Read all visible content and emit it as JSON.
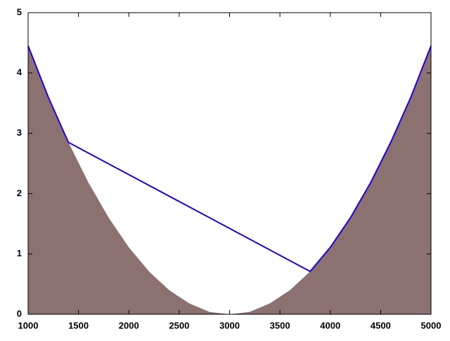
{
  "chart_data": {
    "type": "area",
    "xlim": [
      1000,
      5000
    ],
    "xticks": [
      1000,
      1500,
      2000,
      2500,
      3000,
      3500,
      4000,
      4500,
      5000
    ],
    "ylim": [
      0,
      5
    ],
    "yticks": [
      0,
      1,
      2,
      3,
      4,
      5
    ],
    "grid": false,
    "series": [
      {
        "color": "#8b716f",
        "fill": true,
        "x": [
          1000,
          1200,
          1400,
          1600,
          1800,
          2000,
          2200,
          2400,
          2600,
          2800,
          3000,
          3200,
          3400,
          3600,
          3800,
          4000,
          4200,
          4400,
          4600,
          4800,
          5000
        ],
        "values": [
          4.45,
          3.6,
          2.85,
          2.18,
          1.6,
          1.11,
          0.71,
          0.4,
          0.18,
          0.04,
          0,
          0.04,
          0.18,
          0.4,
          0.71,
          1.11,
          1.6,
          2.18,
          2.85,
          3.6,
          4.45
        ]
      },
      {
        "color": "#1f00d6",
        "fill": false,
        "x": [
          1000,
          1200,
          1400,
          3800,
          4000,
          4200,
          4400,
          4600,
          4800,
          5000
        ],
        "values": [
          4.45,
          3.6,
          2.85,
          0.71,
          1.11,
          1.6,
          2.18,
          2.85,
          3.6,
          4.45
        ]
      }
    ]
  }
}
